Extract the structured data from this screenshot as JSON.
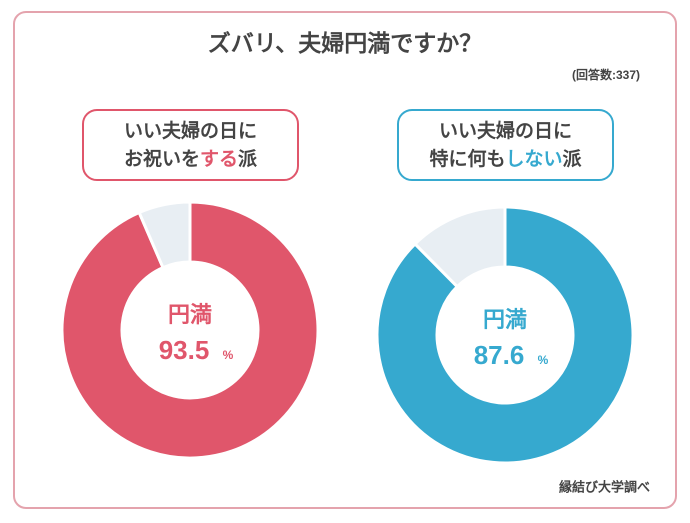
{
  "title": "ズバリ、夫婦円満ですか？",
  "note": "(回答数:337)",
  "source": "縁結び大学調べ",
  "chart_data": [
    {
      "type": "pie",
      "heading": [
        [
          {
            "text": "いい夫婦の日に"
          }
        ],
        [
          {
            "text": "お祝いを"
          },
          {
            "text": "する",
            "color": "#e0566b"
          },
          {
            "text": "派"
          }
        ]
      ],
      "categories": [
        "円満",
        null
      ],
      "values": [
        93.5,
        6.5
      ],
      "unit": "%",
      "colors": [
        "#e0566b",
        "#e8eef3"
      ]
    },
    {
      "type": "pie",
      "heading": [
        [
          {
            "text": "いい夫婦の日に"
          }
        ],
        [
          {
            "text": "特に何も"
          },
          {
            "text": "しない",
            "color": "#36a9cf"
          },
          {
            "text": "派"
          }
        ]
      ],
      "categories": [
        "円満",
        null
      ],
      "values": [
        87.6,
        12.4
      ],
      "unit": "%",
      "colors": [
        "#36a9cf",
        "#e8eef3"
      ]
    }
  ]
}
